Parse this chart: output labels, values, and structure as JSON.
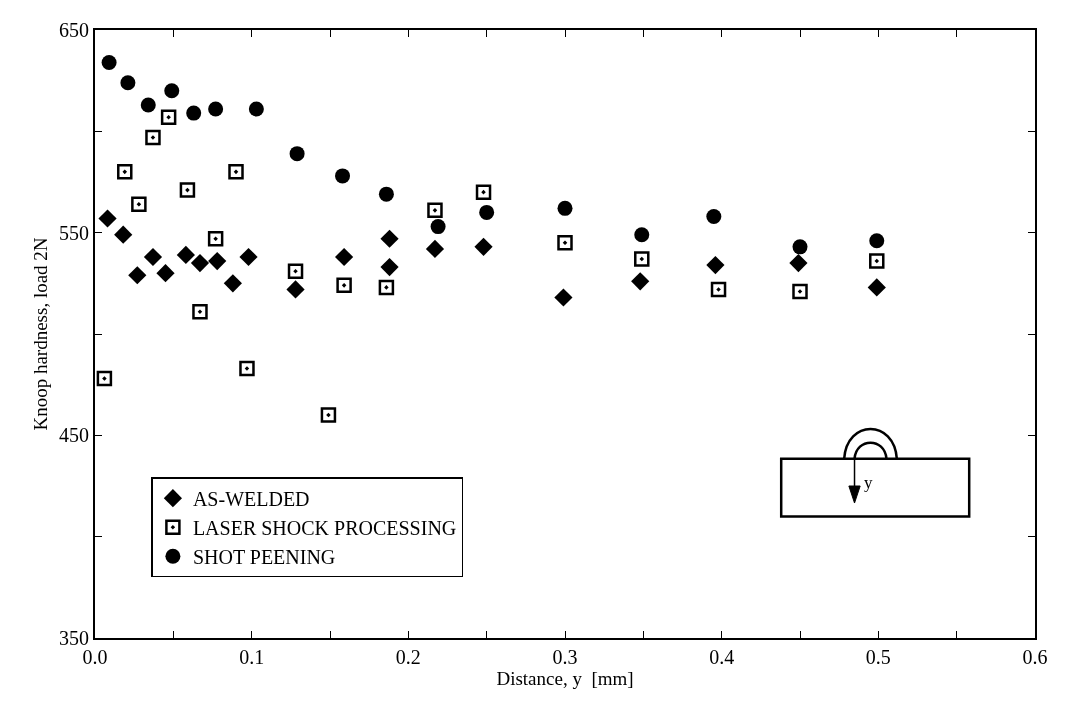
{
  "chart_data": {
    "type": "scatter",
    "xlabel": "Distance, y  [mm]",
    "ylabel": "Knoop hardness, load 2N",
    "xlim": [
      0,
      0.6
    ],
    "ylim": [
      350,
      650
    ],
    "xticks": [
      {
        "value": 0,
        "label": "0.0"
      },
      {
        "value": 0.05,
        "label": null
      },
      0.1,
      {
        "value": 0.15,
        "label": null
      },
      0.2,
      {
        "value": 0.25,
        "label": null
      },
      0.3,
      {
        "value": 0.35,
        "label": null
      },
      0.4,
      {
        "value": 0.45,
        "label": null
      },
      0.5,
      {
        "value": 0.55,
        "label": null
      },
      0.6
    ],
    "yticks": [
      350,
      {
        "value": 400,
        "label": null
      },
      450,
      {
        "value": 500,
        "label": null
      },
      550,
      {
        "value": 600,
        "label": null
      },
      650
    ],
    "legend": "bottom left",
    "annotations": [
      "y"
    ],
    "series": [
      {
        "name": "AS-WELDED",
        "color": "#000000",
        "marker": "diamond",
        "x": [
          0.008,
          0.018,
          0.027,
          0.037,
          0.045,
          0.058,
          0.067,
          0.078,
          0.088,
          0.098,
          0.128,
          0.159,
          0.188,
          0.188,
          0.217,
          0.248,
          0.299,
          0.348,
          0.396,
          0.449,
          0.499
        ],
        "values": [
          557,
          549,
          529,
          538,
          530,
          539,
          535,
          536,
          525,
          538,
          522,
          538,
          533,
          547,
          542,
          543,
          518,
          526,
          534,
          535,
          523
        ]
      },
      {
        "name": "LASER SHOCK PROCESSING",
        "color": "#000000",
        "marker": "square",
        "x": [
          0.006,
          0.019,
          0.028,
          0.037,
          0.047,
          0.059,
          0.067,
          0.077,
          0.09,
          0.097,
          0.128,
          0.149,
          0.159,
          0.186,
          0.217,
          0.248,
          0.3,
          0.349,
          0.398,
          0.45,
          0.499
        ],
        "values": [
          478,
          580,
          564,
          597,
          607,
          571,
          511,
          547,
          580,
          483,
          531,
          460,
          524,
          523,
          561,
          570,
          545,
          537,
          522,
          521,
          536
        ]
      },
      {
        "name": "SHOT PEENING",
        "color": "#000000",
        "marker": "circle",
        "x": [
          0.009,
          0.021,
          0.034,
          0.049,
          0.063,
          0.077,
          0.103,
          0.129,
          0.158,
          0.186,
          0.219,
          0.25,
          0.3,
          0.349,
          0.395,
          0.45,
          0.499
        ],
        "values": [
          634,
          624,
          613,
          620,
          609,
          611,
          611,
          589,
          578,
          569,
          553,
          560,
          562,
          549,
          558,
          543,
          546
        ]
      }
    ]
  }
}
